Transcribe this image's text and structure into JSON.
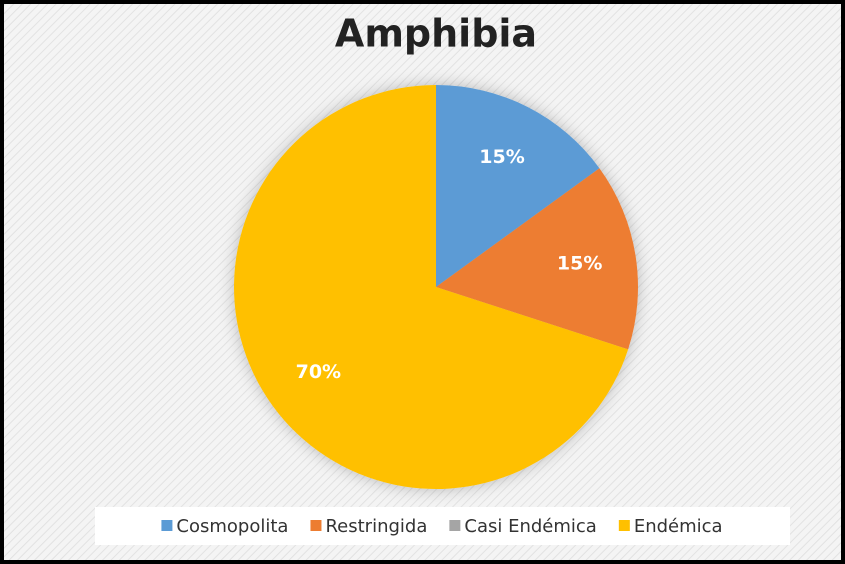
{
  "chart_data": {
    "type": "pie",
    "title": "Amphibia",
    "categories": [
      "Cosmopolita",
      "Restringida",
      "Casi Endémica",
      "Endémica"
    ],
    "values": [
      15,
      15,
      0,
      70
    ],
    "value_labels": [
      "15%",
      "15%",
      null,
      "70%"
    ],
    "colors": [
      "#5b9bd5",
      "#ed7d31",
      "#a5a5a5",
      "#ffc000"
    ],
    "legend": "bottom"
  }
}
